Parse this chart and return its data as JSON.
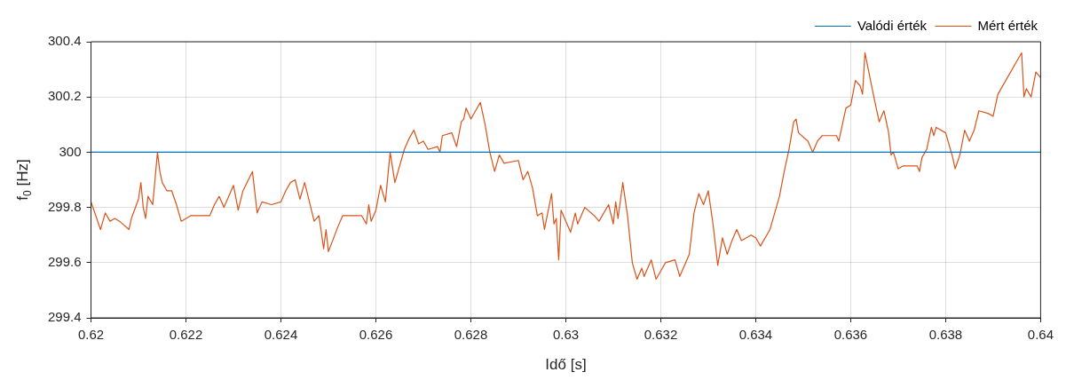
{
  "chart_data": {
    "type": "line",
    "xlabel": "Idő [s]",
    "ylabel": "f$_{0}$ [Hz]",
    "xlim": [
      0.62,
      0.64
    ],
    "ylim": [
      299.4,
      300.4
    ],
    "xticks": [
      0.62,
      0.622,
      0.624,
      0.626,
      0.628,
      0.63,
      0.632,
      0.634,
      0.636,
      0.638,
      0.64
    ],
    "yticks": [
      299.4,
      299.6,
      299.8,
      300,
      300.2,
      300.4
    ],
    "grid": true,
    "legend": "top right",
    "marker": "none",
    "line_style": "solid",
    "series": [
      {
        "name": "Valódi érték",
        "color": "#0072bd",
        "x": [
          0.62,
          0.64
        ],
        "values": [
          300,
          300
        ]
      },
      {
        "name": "Mért érték",
        "color": "#d95319",
        "x": [
          0.62,
          0.62008,
          0.6202,
          0.6203,
          0.6204,
          0.6205,
          0.6206,
          0.6208,
          0.62085,
          0.621,
          0.62105,
          0.6211,
          0.62115,
          0.6212,
          0.6213,
          0.6214,
          0.62145,
          0.6215,
          0.6216,
          0.6217,
          0.6218,
          0.6219,
          0.6221,
          0.6223,
          0.6225,
          0.6226,
          0.6227,
          0.6228,
          0.623,
          0.6231,
          0.6232,
          0.6234,
          0.6235,
          0.6236,
          0.6238,
          0.624,
          0.6241,
          0.6242,
          0.6243,
          0.6244,
          0.6245,
          0.6247,
          0.6248,
          0.6249,
          0.62495,
          0.625,
          0.6252,
          0.6253,
          0.6257,
          0.6258,
          0.62585,
          0.6259,
          0.626,
          0.6261,
          0.6262,
          0.6263,
          0.6264,
          0.6266,
          0.6267,
          0.6268,
          0.6269,
          0.627,
          0.6271,
          0.6273,
          0.62735,
          0.6274,
          0.6276,
          0.6277,
          0.6278,
          0.62785,
          0.6279,
          0.628,
          0.6281,
          0.6282,
          0.6283,
          0.6284,
          0.6285,
          0.6286,
          0.6287,
          0.629,
          0.6291,
          0.6292,
          0.6293,
          0.6294,
          0.6295,
          0.62955,
          0.6297,
          0.62975,
          0.6298,
          0.62985,
          0.6299,
          0.6301,
          0.6302,
          0.63025,
          0.6304,
          0.6306,
          0.6307,
          0.6309,
          0.631,
          0.63105,
          0.6311,
          0.6312,
          0.6313,
          0.6314,
          0.6315,
          0.6316,
          0.63165,
          0.6318,
          0.6319,
          0.6321,
          0.6323,
          0.6324,
          0.6326,
          0.6327,
          0.6328,
          0.6329,
          0.633,
          0.6331,
          0.6332,
          0.6333,
          0.6334,
          0.6335,
          0.6336,
          0.6337,
          0.6339,
          0.634,
          0.6341,
          0.6343,
          0.6345,
          0.6346,
          0.6347,
          0.6348,
          0.63485,
          0.6349,
          0.6351,
          0.6352,
          0.6353,
          0.6354,
          0.6357,
          0.63575,
          0.6359,
          0.636,
          0.6361,
          0.6362,
          0.63625,
          0.6363,
          0.6365,
          0.6366,
          0.6367,
          0.6368,
          0.63685,
          0.6369,
          0.637,
          0.6371,
          0.6374,
          0.63745,
          0.6375,
          0.6376,
          0.6377,
          0.63775,
          0.6378,
          0.638,
          0.6381,
          0.63815,
          0.6382,
          0.6383,
          0.6384,
          0.6385,
          0.6386,
          0.6387,
          0.6389,
          0.639,
          0.6391,
          0.6396,
          0.63965,
          0.6397,
          0.6398,
          0.6399,
          0.64
        ],
        "values": [
          299.82,
          299.78,
          299.72,
          299.78,
          299.75,
          299.76,
          299.75,
          299.72,
          299.76,
          299.83,
          299.89,
          299.8,
          299.76,
          299.84,
          299.81,
          300.0,
          299.93,
          299.89,
          299.86,
          299.86,
          299.81,
          299.75,
          299.77,
          299.77,
          299.77,
          299.81,
          299.84,
          299.8,
          299.88,
          299.79,
          299.86,
          299.93,
          299.78,
          299.82,
          299.81,
          299.82,
          299.86,
          299.89,
          299.9,
          299.83,
          299.89,
          299.75,
          299.77,
          299.65,
          299.72,
          299.64,
          299.73,
          299.77,
          299.77,
          299.74,
          299.81,
          299.75,
          299.79,
          299.88,
          299.82,
          300.0,
          299.89,
          300.01,
          300.05,
          300.08,
          300.03,
          300.04,
          300.01,
          300.02,
          300.0,
          300.06,
          300.07,
          300.02,
          300.11,
          300.12,
          300.16,
          300.12,
          300.15,
          300.18,
          300.1,
          300.0,
          299.93,
          299.99,
          299.96,
          299.97,
          299.9,
          299.93,
          299.87,
          299.77,
          299.78,
          299.72,
          299.85,
          299.74,
          299.76,
          299.61,
          299.79,
          299.71,
          299.78,
          299.74,
          299.8,
          299.77,
          299.75,
          299.81,
          299.74,
          299.82,
          299.76,
          299.89,
          299.77,
          299.6,
          299.54,
          299.58,
          299.55,
          299.61,
          299.54,
          299.6,
          299.61,
          299.55,
          299.63,
          299.78,
          299.85,
          299.81,
          299.86,
          299.74,
          299.59,
          299.69,
          299.63,
          299.68,
          299.72,
          299.68,
          299.7,
          299.69,
          299.66,
          299.72,
          299.84,
          299.93,
          300.01,
          300.11,
          300.12,
          300.07,
          300.04,
          300.0,
          300.04,
          300.06,
          300.06,
          300.04,
          300.16,
          300.17,
          300.26,
          300.24,
          300.21,
          300.36,
          300.19,
          300.11,
          300.15,
          300.07,
          299.99,
          300.0,
          299.94,
          299.95,
          299.95,
          299.93,
          299.98,
          300.01,
          300.09,
          300.06,
          300.09,
          300.07,
          300.01,
          299.98,
          299.94,
          299.99,
          300.08,
          300.04,
          300.08,
          300.15,
          300.14,
          300.13,
          300.21,
          300.36,
          300.2,
          300.23,
          300.2,
          300.29,
          300.27
        ]
      }
    ]
  }
}
